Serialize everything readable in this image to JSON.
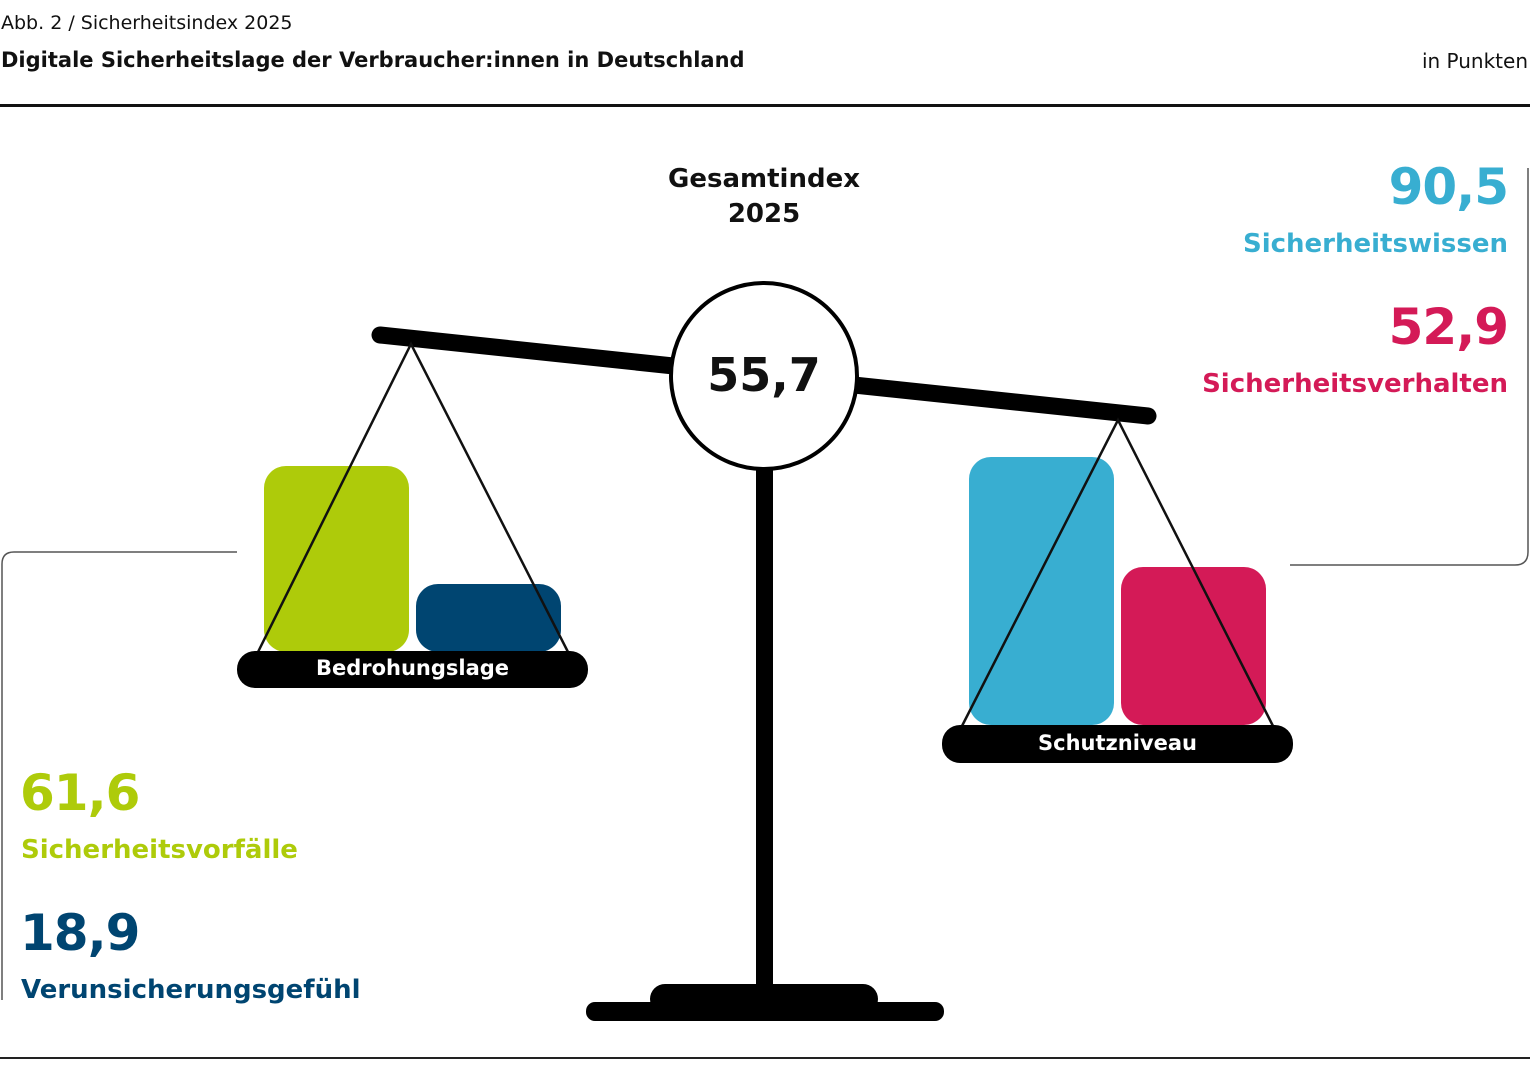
{
  "header": {
    "kicker": "Abb. 2 / Sicherheitsindex 2025",
    "title": "Digitale Sicherheitslage der Verbraucher:innen in Deutschland",
    "unit": "in Punkten"
  },
  "gesamtindex": {
    "label": "Gesamtindex",
    "year": "2025",
    "value": "55,7"
  },
  "left_pan": {
    "label": "Bedrohungslage",
    "items": [
      {
        "value": "61,6",
        "label": "Sicherheitsvorfälle",
        "color": "#aecb0a"
      },
      {
        "value": "18,9",
        "label": "Verunsicherungsgefühl",
        "color": "#004571"
      }
    ]
  },
  "right_pan": {
    "label": "Schutzniveau",
    "items": [
      {
        "value": "90,5",
        "label": "Sicherheitswissen",
        "color": "#38aed1"
      },
      {
        "value": "52,9",
        "label": "Sicherheitsverhalten",
        "color": "#d41a57"
      }
    ]
  }
}
